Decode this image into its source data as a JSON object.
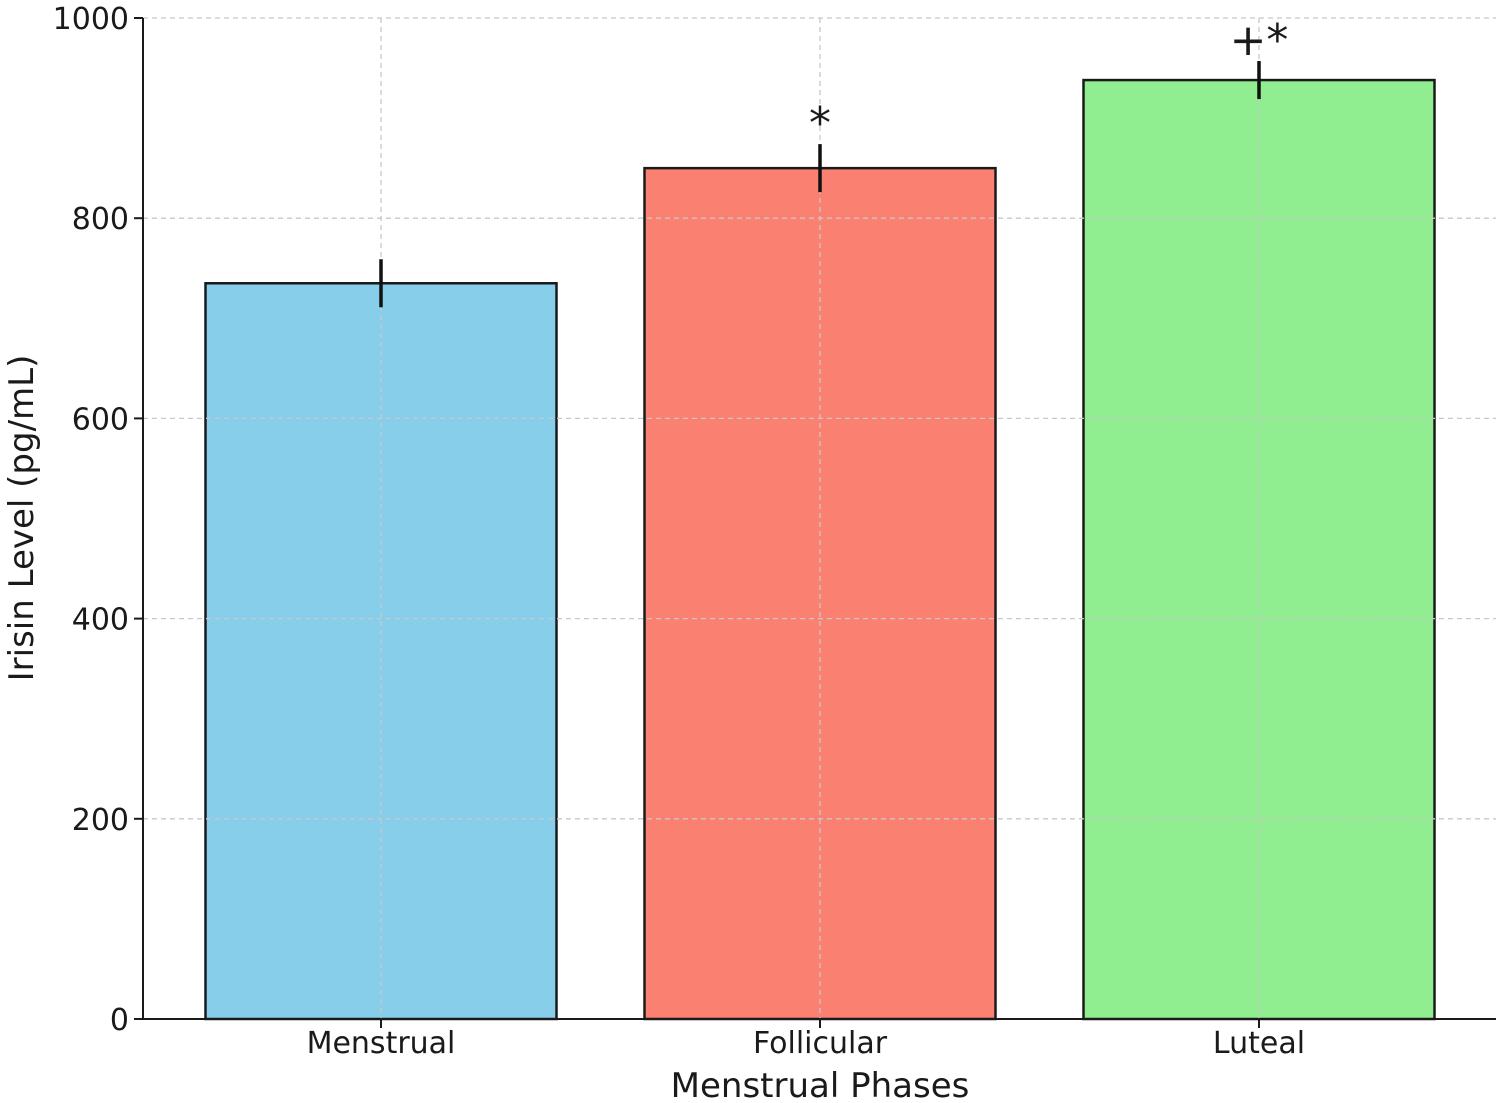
{
  "chart_data": {
    "type": "bar",
    "title": "",
    "xlabel": "Menstrual Phases",
    "ylabel": "Irisin Level (pg/mL)",
    "categories": [
      "Menstrual",
      "Follicular",
      "Luteal"
    ],
    "values": [
      735,
      850,
      938
    ],
    "errors": [
      24,
      24,
      19
    ],
    "annotations": [
      "",
      "*",
      "+*"
    ],
    "colors": [
      "#87ceeb",
      "#fa8072",
      "#90ee90"
    ],
    "edge_color": "#1a1a1a",
    "ylim": [
      0,
      1000
    ],
    "yticks": [
      0,
      200,
      400,
      600,
      800,
      1000
    ],
    "grid": true,
    "legend": "none"
  }
}
